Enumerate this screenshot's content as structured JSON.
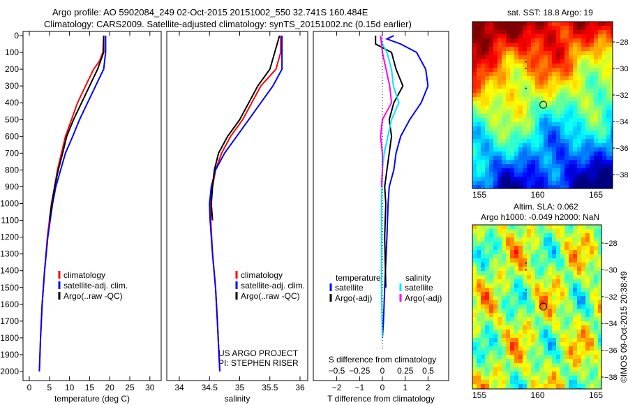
{
  "title_line1": "Argo profile: AO 5902084_249 02-Oct-2015 20151002_550 32.741S 160.484E",
  "title_line2": "Climatology: CARS2009. Satellite-adjusted climatology: synTS_20151002.nc (0.15d earlier)",
  "credit": "US ARGO PROJECT",
  "pi": "PI: STEPHEN RISER",
  "watermark": "©IMOS 09-Oct-2015 20:38:49",
  "colors": {
    "climatology": "#ff0000",
    "satellite": "#0000ff",
    "argo": "#000000",
    "sal_satellite": "#00e5ff",
    "sal_argo": "#ff00ff"
  },
  "chart_data": [
    {
      "type": "line",
      "xlabel": "temperature (deg C)",
      "ylabel": "",
      "xlim": [
        -1.5,
        32
      ],
      "ylim": [
        2000,
        0
      ],
      "xticks": [
        0,
        5,
        10,
        15,
        20,
        25,
        30
      ],
      "yticks": [
        0,
        100,
        200,
        300,
        400,
        500,
        600,
        700,
        800,
        900,
        1000,
        1100,
        1200,
        1300,
        1400,
        1500,
        1600,
        1700,
        1800,
        1900,
        2000
      ],
      "legend": [
        "climatology",
        "satellite-adj. clim.",
        "Argo(..raw -QC)"
      ],
      "series": [
        {
          "name": "climatology",
          "color": "#ff0000",
          "depth": [
            0,
            100,
            150,
            200,
            300,
            400,
            500,
            600,
            700,
            800,
            900,
            1000,
            1200,
            1400,
            1600,
            1800,
            2000
          ],
          "values": [
            18.5,
            18.3,
            17.5,
            16,
            14,
            12,
            10.5,
            9,
            8,
            7,
            6.3,
            5.5,
            4.5,
            3.8,
            3.2,
            2.8,
            2.5
          ]
        },
        {
          "name": "satellite-adj. clim.",
          "color": "#0000ff",
          "depth": [
            0,
            100,
            200,
            300,
            400,
            500,
            600,
            700,
            800,
            900,
            1000,
            1200,
            1400,
            1600,
            1800,
            2000
          ],
          "values": [
            19,
            19,
            18.5,
            16.5,
            14.5,
            12.5,
            10.8,
            9,
            7.8,
            6.6,
            5.8,
            4.6,
            3.8,
            3.2,
            2.8,
            2.5
          ]
        },
        {
          "name": "Argo(..raw -QC)",
          "color": "#000000",
          "depth": [
            0,
            100,
            200,
            300,
            400,
            500,
            600,
            700,
            800,
            900,
            1000,
            1100
          ],
          "values": [
            18.5,
            18.5,
            17,
            15,
            13,
            11,
            9.3,
            8.3,
            7.2,
            6.3,
            5.6,
            5
          ]
        }
      ]
    },
    {
      "type": "line",
      "xlabel": "salinity",
      "xlim": [
        33.8,
        36.1
      ],
      "ylim": [
        2000,
        0
      ],
      "xticks": [
        34,
        34.5,
        35,
        35.5,
        36
      ],
      "legend": [
        "climatology",
        "satellite-adj. clim.",
        "Argo(..raw -QC)"
      ],
      "series": [
        {
          "name": "climatology",
          "color": "#ff0000",
          "depth": [
            0,
            100,
            200,
            300,
            400,
            500,
            600,
            700,
            800,
            900,
            1000,
            1100,
            1300,
            1500,
            1700,
            2000
          ],
          "values": [
            35.68,
            35.68,
            35.6,
            35.35,
            35.2,
            35.05,
            34.85,
            34.7,
            34.6,
            34.55,
            34.52,
            34.52,
            34.55,
            34.6,
            34.63,
            34.67
          ]
        },
        {
          "name": "satellite-adj. clim.",
          "color": "#0000ff",
          "depth": [
            0,
            200,
            300,
            400,
            500,
            600,
            700,
            800,
            900,
            1000,
            1100,
            1300,
            1500,
            1700,
            2000
          ],
          "values": [
            35.7,
            35.7,
            35.55,
            35.35,
            35.15,
            34.95,
            34.75,
            34.6,
            34.53,
            34.5,
            34.51,
            34.55,
            34.6,
            34.63,
            34.67
          ]
        },
        {
          "name": "Argo(..raw -QC)",
          "color": "#000000",
          "depth": [
            0,
            200,
            300,
            400,
            500,
            600,
            700,
            800,
            900,
            1000,
            1100
          ],
          "values": [
            35.66,
            35.5,
            35.3,
            35.15,
            35.0,
            34.8,
            34.65,
            34.58,
            34.55,
            34.53,
            34.55
          ]
        }
      ]
    },
    {
      "type": "line",
      "xlabel": "T difference from climatology",
      "x2label": "S difference from climatology",
      "xlim": [
        -3,
        3
      ],
      "ylim": [
        2000,
        0
      ],
      "xticks": [
        -2,
        -1,
        0,
        1,
        2
      ],
      "x2ticks": [
        -0.5,
        -0.25,
        0,
        0.25,
        0.5
      ],
      "legend_left_title": "temperature",
      "legend_right_title": "salinity",
      "legend": [
        "satellite",
        "Argo(-adj)",
        "satellite",
        "Argo(-adj)"
      ],
      "series": [
        {
          "name": "T satellite",
          "color": "#0000ff",
          "units": "T",
          "depth": [
            0,
            20,
            50,
            100,
            200,
            300,
            400,
            500,
            600,
            700,
            800,
            900,
            1000,
            1200,
            1500,
            1700,
            1800
          ],
          "values": [
            0.5,
            0.2,
            0.8,
            1.5,
            1.9,
            2.0,
            1.7,
            1.2,
            0.8,
            0.6,
            0.5,
            0.3,
            0.25,
            0.2,
            0.1,
            0.05,
            0
          ]
        },
        {
          "name": "T Argo(-adj)",
          "color": "#000000",
          "units": "T",
          "depth": [
            0,
            50,
            100,
            200,
            300,
            400,
            500,
            600,
            700,
            800,
            900,
            1000,
            1200,
            1500
          ],
          "values": [
            -0.3,
            -0.3,
            0.4,
            0.6,
            0.9,
            0.5,
            0.3,
            0.4,
            0.3,
            0.2,
            0.1,
            0.15,
            0.1,
            0.15
          ]
        },
        {
          "name": "S satellite",
          "color": "#00e5ff",
          "units": "S",
          "depth": [
            0,
            50,
            100,
            200,
            300,
            400,
            500,
            600,
            700,
            800,
            1000,
            1500,
            1800
          ],
          "values": [
            -0.02,
            0,
            0.05,
            0.1,
            0.12,
            0.18,
            0.1,
            0.06,
            0.02,
            0,
            -0.01,
            -0.01,
            0
          ]
        },
        {
          "name": "S Argo(-adj)",
          "color": "#ff00ff",
          "units": "S",
          "depth": [
            0,
            100,
            300,
            400,
            500,
            600,
            700,
            800,
            900
          ],
          "values": [
            -0.02,
            0,
            0.08,
            0.1,
            0,
            -0.02,
            0,
            0,
            -0.01
          ]
        }
      ]
    },
    {
      "type": "heatmap",
      "title": "sat. SST: 18.8 Argo: 19",
      "xticks": [
        155,
        160,
        165
      ],
      "yticks": [
        -28,
        -30,
        -32,
        -34,
        -36,
        -38
      ],
      "xlim": [
        154.5,
        166.5
      ],
      "ylim": [
        -39,
        -26.5
      ],
      "float": [
        160.484,
        -32.741
      ]
    },
    {
      "type": "heatmap",
      "title": "Altim. SLA: 0.062",
      "subtitle": "Argo h1000: -0.049 h2000: NaN",
      "xticks": [
        155,
        160,
        165
      ],
      "yticks": [
        -28,
        -30,
        -32,
        -34,
        -36,
        -38
      ],
      "xlim": [
        154.5,
        166.5
      ],
      "ylim": [
        -39,
        -26.5
      ],
      "float": [
        160.484,
        -32.741
      ]
    }
  ]
}
